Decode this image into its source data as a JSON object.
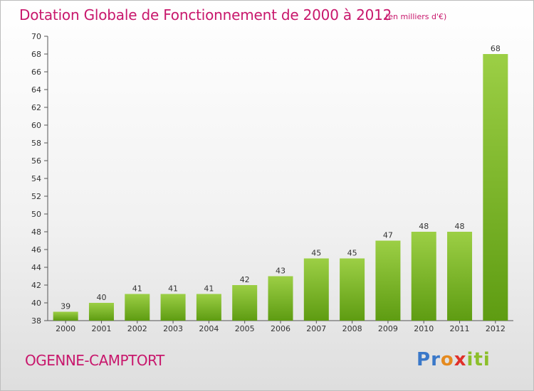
{
  "page": {
    "title": "Dotation Globale de Fonctionnement de 2000 à 2012",
    "subtitle": "(en milliers d'€)",
    "commune": "OGENNE-CAMPTORT",
    "logo": {
      "letters": [
        "P",
        "r",
        "o",
        "x",
        "i",
        "t",
        "i"
      ],
      "colors": [
        "#3a78c9",
        "#3a78c9",
        "#e58a1f",
        "#e0302a",
        "#8cbf2a",
        "#8cbf2a",
        "#8cbf2a"
      ]
    }
  },
  "colors": {
    "title": "#c8176c",
    "bar_light": "#9ccf45",
    "bar_dark": "#5e9c12"
  },
  "chart_data": {
    "type": "bar",
    "title": "Dotation Globale de Fonctionnement de 2000 à 2012",
    "subtitle": "(en milliers d'€)",
    "categories": [
      "2000",
      "2001",
      "2002",
      "2003",
      "2004",
      "2005",
      "2006",
      "2007",
      "2008",
      "2009",
      "2010",
      "2011",
      "2012"
    ],
    "values": [
      39,
      40,
      41,
      41,
      41,
      42,
      43,
      45,
      45,
      47,
      48,
      48,
      68
    ],
    "ylim": [
      38,
      70
    ],
    "yticks": [
      38,
      40,
      42,
      44,
      46,
      48,
      50,
      52,
      54,
      56,
      58,
      60,
      62,
      64,
      66,
      68,
      70
    ],
    "grid": false,
    "data_labels": true
  }
}
